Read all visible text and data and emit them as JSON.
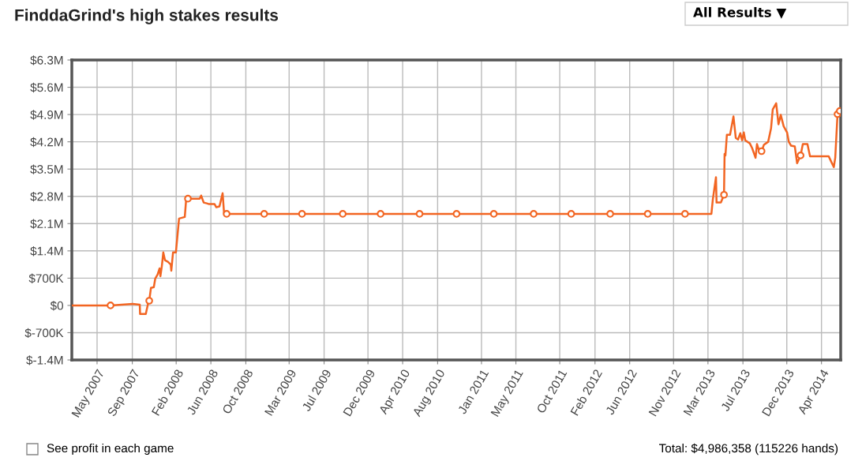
{
  "chart_data": {
    "type": "line",
    "title": "FinddaGrind's high stakes results",
    "annotations": [
      "All Results ▼",
      "See profit in each game",
      "Total: $4,986,358 (115226 hands)"
    ],
    "xlim": [
      "2007-02-16",
      "2014-06-21"
    ],
    "xticks": [
      {
        "value": "2007-05-15",
        "label": "May 2007"
      },
      {
        "value": "2007-09-15",
        "label": "Sep 2007"
      },
      {
        "value": "2008-02-15",
        "label": "Feb 2008"
      },
      {
        "value": "2008-06-15",
        "label": "Jun 2008"
      },
      {
        "value": "2008-10-15",
        "label": "Oct 2008"
      },
      {
        "value": "2009-03-15",
        "label": "Mar 2009"
      },
      {
        "value": "2009-07-15",
        "label": "Jul 2009"
      },
      {
        "value": "2009-12-15",
        "label": "Dec 2009"
      },
      {
        "value": "2010-04-15",
        "label": "Apr 2010"
      },
      {
        "value": "2010-08-15",
        "label": "Aug 2010"
      },
      {
        "value": "2011-01-15",
        "label": "Jan 2011"
      },
      {
        "value": "2011-05-15",
        "label": "May 2011"
      },
      {
        "value": "2011-10-15",
        "label": "Oct 2011"
      },
      {
        "value": "2012-02-15",
        "label": "Feb 2012"
      },
      {
        "value": "2012-06-15",
        "label": "Jun 2012"
      },
      {
        "value": "2012-11-15",
        "label": "Nov 2012"
      },
      {
        "value": "2013-03-15",
        "label": "Mar 2013"
      },
      {
        "value": "2013-07-15",
        "label": "Jul 2013"
      },
      {
        "value": "2013-12-15",
        "label": "Dec 2013"
      },
      {
        "value": "2014-04-15",
        "label": "Apr 2014"
      }
    ],
    "ylim": [
      -1400000,
      6300000
    ],
    "yticks": [
      {
        "value": -1400000,
        "label": "$-1.4M"
      },
      {
        "value": -700000,
        "label": "$-700K"
      },
      {
        "value": 0,
        "label": "$0"
      },
      {
        "value": 700000,
        "label": "$700K"
      },
      {
        "value": 1400000,
        "label": "$1.4M"
      },
      {
        "value": 2100000,
        "label": "$2.1M"
      },
      {
        "value": 2800000,
        "label": "$2.8M"
      },
      {
        "value": 3500000,
        "label": "$3.5M"
      },
      {
        "value": 4200000,
        "label": "$4.2M"
      },
      {
        "value": 4900000,
        "label": "$4.9M"
      },
      {
        "value": 5600000,
        "label": "$5.6M"
      },
      {
        "value": 6300000,
        "label": "$6.3M"
      }
    ],
    "grid": true,
    "series": [
      {
        "color": "#f26522",
        "x": [
          "2007-02-16",
          "2007-07-01",
          "2007-09-16",
          "2007-10-11",
          "2007-10-12",
          "2007-11-01",
          "2007-11-08",
          "2007-11-13",
          "2007-11-19",
          "2007-11-29",
          "2007-12-04",
          "2007-12-12",
          "2007-12-19",
          "2007-12-22",
          "2007-12-27",
          "2008-01-01",
          "2008-01-07",
          "2008-01-17",
          "2008-01-27",
          "2008-01-29",
          "2008-02-04",
          "2008-02-14",
          "2008-02-25",
          "2008-03-16",
          "2008-03-21",
          "2008-05-07",
          "2008-05-12",
          "2008-05-21",
          "2008-06-01",
          "2008-06-09",
          "2008-06-28",
          "2008-07-04",
          "2008-07-15",
          "2008-07-26",
          "2008-07-31",
          "2008-08-09",
          "2013-03-27",
          "2013-04-01",
          "2013-04-12",
          "2013-04-14",
          "2013-04-29",
          "2013-05-10",
          "2013-05-12",
          "2013-05-15",
          "2013-05-20",
          "2013-05-31",
          "2013-06-12",
          "2013-06-20",
          "2013-06-28",
          "2013-07-06",
          "2013-07-12",
          "2013-07-18",
          "2013-07-23",
          "2013-08-08",
          "2013-08-16",
          "2013-08-28",
          "2013-09-02",
          "2013-09-10",
          "2013-09-18",
          "2013-09-26",
          "2013-10-11",
          "2013-10-21",
          "2013-10-27",
          "2013-11-08",
          "2013-11-16",
          "2013-11-24",
          "2013-12-04",
          "2013-12-16",
          "2013-12-22",
          "2013-12-30",
          "2014-01-12",
          "2014-01-20",
          "2014-02-01",
          "2014-02-09",
          "2014-02-25",
          "2014-03-06",
          "2014-05-10",
          "2014-05-28",
          "2014-06-02",
          "2014-06-10",
          "2014-06-18"
        ],
        "values": [
          0,
          0,
          40000,
          20000,
          -220000,
          -220000,
          20000,
          120000,
          450000,
          470000,
          690000,
          790000,
          950000,
          750000,
          1010000,
          1360000,
          1160000,
          1120000,
          1050000,
          890000,
          1360000,
          1360000,
          2230000,
          2270000,
          2740000,
          2740000,
          2820000,
          2640000,
          2620000,
          2600000,
          2600000,
          2520000,
          2540000,
          2880000,
          2370000,
          2350000,
          2350000,
          2720000,
          3290000,
          2640000,
          2640000,
          2840000,
          3890000,
          3850000,
          4380000,
          4380000,
          4850000,
          4300000,
          4260000,
          4420000,
          4240000,
          4440000,
          4240000,
          4160000,
          4040000,
          3790000,
          4140000,
          3960000,
          3960000,
          4120000,
          4200000,
          4540000,
          5030000,
          5190000,
          4650000,
          4890000,
          4600000,
          4440000,
          4200000,
          4100000,
          4080000,
          3650000,
          3850000,
          4140000,
          4140000,
          3830000,
          3830000,
          3550000,
          3790000,
          4910000,
          4990000
        ]
      },
      {
        "type": "scatter",
        "color": "#f26522",
        "marker": "circle",
        "x": [
          "2007-07-01",
          "2007-11-13",
          "2008-03-27",
          "2008-08-09",
          "2008-12-18",
          "2009-04-29",
          "2009-09-18",
          "2010-01-28",
          "2010-06-13",
          "2010-10-20",
          "2011-02-27",
          "2011-07-16",
          "2011-11-24",
          "2012-04-08",
          "2012-08-17",
          "2012-12-25",
          "2013-05-10",
          "2013-09-18",
          "2014-02-01",
          "2014-06-10",
          "2014-06-18"
        ],
        "values": [
          0,
          120000,
          2740000,
          2350000,
          2350000,
          2350000,
          2350000,
          2350000,
          2350000,
          2350000,
          2350000,
          2350000,
          2350000,
          2350000,
          2350000,
          2350000,
          2840000,
          3960000,
          3850000,
          4910000,
          4990000
        ]
      }
    ]
  }
}
